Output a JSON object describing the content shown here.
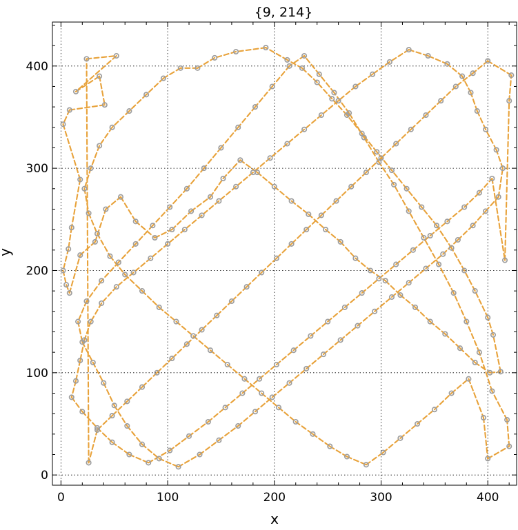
{
  "chart_data": {
    "type": "scatter",
    "title": "{9, 214}",
    "xlabel": "x",
    "ylabel": "y",
    "xlim": [
      -8,
      427
    ],
    "ylim": [
      -10,
      443
    ],
    "xticks": [
      0,
      100,
      200,
      300,
      400
    ],
    "yticks": [
      0,
      100,
      200,
      300,
      400
    ],
    "xtick_labels": [
      "0",
      "100",
      "200",
      "300",
      "400"
    ],
    "ytick_labels": [
      "0",
      "100",
      "200",
      "300",
      "400"
    ],
    "grid": true,
    "series": [
      {
        "style": "dashed line through points (tour)",
        "color": "#e8a23a",
        "marker_color": "#9e9e9e",
        "points": [
          [
            24,
            407
          ],
          [
            52,
            410
          ],
          [
            14,
            375
          ],
          [
            36,
            390
          ],
          [
            41,
            362
          ],
          [
            8,
            357
          ],
          [
            2,
            343
          ],
          [
            18,
            289
          ],
          [
            10,
            242
          ],
          [
            7,
            221
          ],
          [
            2,
            200
          ],
          [
            5,
            186
          ],
          [
            8,
            178
          ],
          [
            18,
            215
          ],
          [
            32,
            228
          ],
          [
            42,
            260
          ],
          [
            56,
            272
          ],
          [
            70,
            248
          ],
          [
            88,
            232
          ],
          [
            104,
            240
          ],
          [
            122,
            258
          ],
          [
            140,
            272
          ],
          [
            152,
            290
          ],
          [
            168,
            308
          ],
          [
            184,
            296
          ],
          [
            200,
            282
          ],
          [
            216,
            268
          ],
          [
            232,
            255
          ],
          [
            248,
            240
          ],
          [
            262,
            228
          ],
          [
            276,
            212
          ],
          [
            290,
            200
          ],
          [
            304,
            190
          ],
          [
            318,
            176
          ],
          [
            332,
            164
          ],
          [
            346,
            150
          ],
          [
            360,
            138
          ],
          [
            374,
            124
          ],
          [
            388,
            110
          ],
          [
            402,
            100
          ],
          [
            412,
            101
          ],
          [
            405,
            137
          ],
          [
            400,
            154
          ],
          [
            388,
            180
          ],
          [
            378,
            200
          ],
          [
            366,
            222
          ],
          [
            352,
            244
          ],
          [
            338,
            262
          ],
          [
            324,
            280
          ],
          [
            310,
            298
          ],
          [
            296,
            316
          ],
          [
            282,
            334
          ],
          [
            268,
            352
          ],
          [
            254,
            368
          ],
          [
            240,
            384
          ],
          [
            226,
            398
          ],
          [
            212,
            406
          ],
          [
            192,
            418
          ],
          [
            164,
            414
          ],
          [
            144,
            408
          ],
          [
            128,
            398
          ],
          [
            112,
            398
          ],
          [
            96,
            388
          ],
          [
            80,
            372
          ],
          [
            64,
            356
          ],
          [
            48,
            340
          ],
          [
            36,
            322
          ],
          [
            28,
            300
          ],
          [
            22,
            280
          ],
          [
            26,
            256
          ],
          [
            34,
            236
          ],
          [
            46,
            214
          ],
          [
            60,
            196
          ],
          [
            76,
            180
          ],
          [
            92,
            164
          ],
          [
            108,
            150
          ],
          [
            124,
            136
          ],
          [
            140,
            122
          ],
          [
            156,
            108
          ],
          [
            172,
            94
          ],
          [
            188,
            80
          ],
          [
            204,
            66
          ],
          [
            220,
            52
          ],
          [
            236,
            40
          ],
          [
            252,
            28
          ],
          [
            268,
            18
          ],
          [
            286,
            10
          ],
          [
            302,
            22
          ],
          [
            318,
            36
          ],
          [
            334,
            50
          ],
          [
            350,
            64
          ],
          [
            366,
            80
          ],
          [
            382,
            94
          ],
          [
            396,
            56
          ],
          [
            400,
            16
          ],
          [
            420,
            28
          ],
          [
            418,
            54
          ],
          [
            404,
            82
          ],
          [
            392,
            120
          ],
          [
            380,
            150
          ],
          [
            368,
            178
          ],
          [
            354,
            206
          ],
          [
            340,
            232
          ],
          [
            326,
            258
          ],
          [
            312,
            284
          ],
          [
            298,
            306
          ],
          [
            284,
            330
          ],
          [
            270,
            354
          ],
          [
            256,
            374
          ],
          [
            242,
            392
          ],
          [
            228,
            410
          ],
          [
            214,
            400
          ],
          [
            198,
            380
          ],
          [
            182,
            360
          ],
          [
            166,
            340
          ],
          [
            150,
            320
          ],
          [
            134,
            300
          ],
          [
            118,
            280
          ],
          [
            102,
            262
          ],
          [
            86,
            244
          ],
          [
            70,
            226
          ],
          [
            54,
            208
          ],
          [
            38,
            190
          ],
          [
            24,
            170
          ],
          [
            16,
            150
          ],
          [
            20,
            130
          ],
          [
            30,
            110
          ],
          [
            40,
            90
          ],
          [
            50,
            68
          ],
          [
            62,
            48
          ],
          [
            76,
            30
          ],
          [
            92,
            16
          ],
          [
            110,
            8
          ],
          [
            130,
            20
          ],
          [
            148,
            34
          ],
          [
            166,
            48
          ],
          [
            182,
            62
          ],
          [
            198,
            76
          ],
          [
            214,
            90
          ],
          [
            230,
            104
          ],
          [
            246,
            118
          ],
          [
            262,
            132
          ],
          [
            278,
            146
          ],
          [
            294,
            160
          ],
          [
            310,
            174
          ],
          [
            326,
            188
          ],
          [
            342,
            202
          ],
          [
            358,
            216
          ],
          [
            372,
            230
          ],
          [
            386,
            244
          ],
          [
            398,
            258
          ],
          [
            410,
            272
          ],
          [
            414,
            300
          ],
          [
            408,
            318
          ],
          [
            398,
            338
          ],
          [
            390,
            356
          ],
          [
            384,
            374
          ],
          [
            376,
            390
          ],
          [
            362,
            402
          ],
          [
            344,
            410
          ],
          [
            326,
            416
          ],
          [
            308,
            404
          ],
          [
            292,
            392
          ],
          [
            276,
            380
          ],
          [
            260,
            366
          ],
          [
            244,
            352
          ],
          [
            228,
            338
          ],
          [
            212,
            324
          ],
          [
            196,
            310
          ],
          [
            180,
            296
          ],
          [
            164,
            282
          ],
          [
            148,
            268
          ],
          [
            132,
            254
          ],
          [
            116,
            240
          ],
          [
            100,
            226
          ],
          [
            84,
            212
          ],
          [
            68,
            198
          ],
          [
            52,
            184
          ],
          [
            38,
            168
          ],
          [
            28,
            150
          ],
          [
            22,
            132
          ],
          [
            18,
            112
          ],
          [
            14,
            92
          ],
          [
            10,
            76
          ],
          [
            20,
            62
          ],
          [
            34,
            46
          ],
          [
            48,
            32
          ],
          [
            64,
            20
          ],
          [
            82,
            12
          ],
          [
            102,
            24
          ],
          [
            120,
            38
          ],
          [
            138,
            52
          ],
          [
            154,
            66
          ],
          [
            170,
            80
          ],
          [
            186,
            94
          ],
          [
            202,
            108
          ],
          [
            218,
            122
          ],
          [
            234,
            136
          ],
          [
            250,
            150
          ],
          [
            266,
            164
          ],
          [
            282,
            178
          ],
          [
            298,
            192
          ],
          [
            314,
            206
          ],
          [
            330,
            220
          ],
          [
            346,
            234
          ],
          [
            362,
            248
          ],
          [
            378,
            262
          ],
          [
            392,
            276
          ],
          [
            404,
            290
          ],
          [
            416,
            210
          ],
          [
            420,
            366
          ],
          [
            422,
            391
          ],
          [
            400,
            405
          ],
          [
            386,
            393
          ],
          [
            370,
            380
          ],
          [
            356,
            366
          ],
          [
            342,
            352
          ],
          [
            328,
            338
          ],
          [
            314,
            324
          ],
          [
            300,
            310
          ],
          [
            286,
            296
          ],
          [
            272,
            282
          ],
          [
            258,
            268
          ],
          [
            244,
            254
          ],
          [
            230,
            240
          ],
          [
            216,
            226
          ],
          [
            202,
            212
          ],
          [
            188,
            198
          ],
          [
            174,
            184
          ],
          [
            160,
            170
          ],
          [
            146,
            156
          ],
          [
            132,
            142
          ],
          [
            118,
            128
          ],
          [
            104,
            114
          ],
          [
            90,
            100
          ],
          [
            76,
            86
          ],
          [
            62,
            72
          ],
          [
            48,
            58
          ],
          [
            34,
            44
          ],
          [
            26,
            12
          ],
          [
            24,
            407
          ]
        ]
      }
    ]
  }
}
